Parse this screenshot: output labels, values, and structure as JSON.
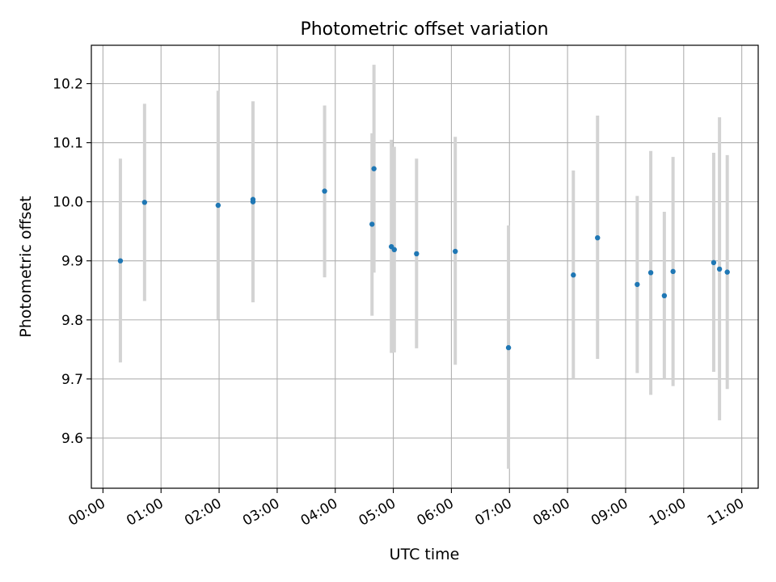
{
  "chart_data": {
    "type": "scatter",
    "title": "Photometric offset variation",
    "xlabel": "UTC time",
    "ylabel": "Photometric offset",
    "grid": true,
    "legend": "none",
    "xlim": [
      "-00:12",
      "11:17"
    ],
    "ylim": [
      9.515,
      10.265
    ],
    "x_ticks": [
      "00:00",
      "01:00",
      "02:00",
      "03:00",
      "04:00",
      "05:00",
      "06:00",
      "07:00",
      "08:00",
      "09:00",
      "10:00",
      "11:00"
    ],
    "y_ticks": [
      "9.6",
      "9.7",
      "9.8",
      "9.9",
      "10.0",
      "10.1",
      "10.2"
    ],
    "colors": {
      "points": "#1f77b4",
      "error_bars": "#d3d3d3",
      "grid": "#b0b0b0"
    },
    "series": [
      {
        "points": [
          {
            "x": "00:18",
            "y": 9.9,
            "err": [
              9.728,
              10.073
            ]
          },
          {
            "x": "00:43",
            "y": 9.999,
            "err": [
              9.832,
              10.166
            ]
          },
          {
            "x": "01:59",
            "y": 9.994,
            "err": [
              9.801,
              10.188
            ]
          },
          {
            "x": "02:35",
            "y": 10.0,
            "err": [
              9.83,
              10.17
            ]
          },
          {
            "x": "02:35",
            "y": 10.004,
            "err": [
              9.83,
              10.17
            ]
          },
          {
            "x": "03:49",
            "y": 10.018,
            "err": [
              9.872,
              10.163
            ]
          },
          {
            "x": "04:38",
            "y": 9.962,
            "err": [
              9.807,
              10.116
            ]
          },
          {
            "x": "04:40",
            "y": 10.056,
            "err": [
              9.88,
              10.232
            ]
          },
          {
            "x": "04:58",
            "y": 9.924,
            "err": [
              9.744,
              10.105
            ]
          },
          {
            "x": "05:01",
            "y": 9.919,
            "err": [
              9.745,
              10.093
            ]
          },
          {
            "x": "05:24",
            "y": 9.912,
            "err": [
              9.752,
              10.073
            ]
          },
          {
            "x": "06:04",
            "y": 9.916,
            "err": [
              9.724,
              10.11
            ]
          },
          {
            "x": "06:59",
            "y": 9.753,
            "err": [
              9.548,
              9.96
            ]
          },
          {
            "x": "08:06",
            "y": 9.876,
            "err": [
              9.7,
              10.053
            ]
          },
          {
            "x": "08:31",
            "y": 9.939,
            "err": [
              9.734,
              10.146
            ]
          },
          {
            "x": "09:12",
            "y": 9.86,
            "err": [
              9.71,
              10.01
            ]
          },
          {
            "x": "09:26",
            "y": 9.88,
            "err": [
              9.673,
              10.086
            ]
          },
          {
            "x": "09:40",
            "y": 9.841,
            "err": [
              9.7,
              9.983
            ]
          },
          {
            "x": "09:49",
            "y": 9.882,
            "err": [
              9.688,
              10.076
            ]
          },
          {
            "x": "10:31",
            "y": 9.897,
            "err": [
              9.712,
              10.083
            ]
          },
          {
            "x": "10:37",
            "y": 9.886,
            "err": [
              9.63,
              10.143
            ]
          },
          {
            "x": "10:45",
            "y": 9.881,
            "err": [
              9.683,
              10.079
            ]
          }
        ]
      }
    ]
  }
}
